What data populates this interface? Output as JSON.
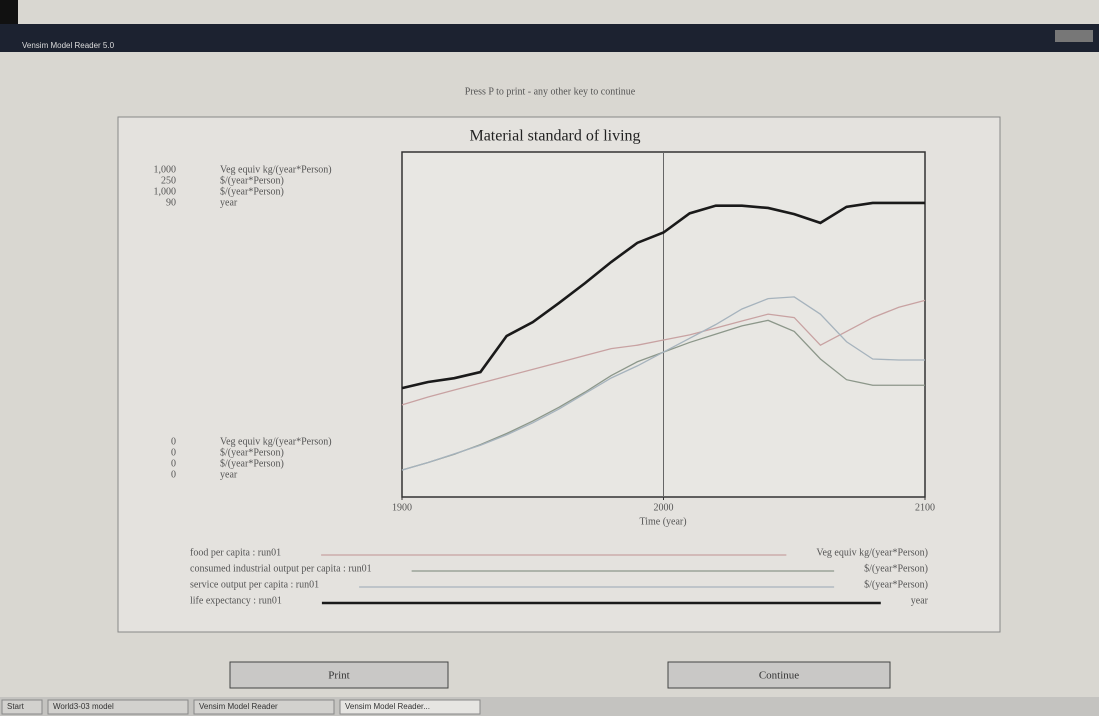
{
  "window": {
    "title": "Vensim Model Reader 5.0"
  },
  "prompt": "Press P to print - any other key to continue",
  "chart_data": {
    "type": "line",
    "title": "Material standard of living",
    "x_label": "Time (year)",
    "xlim": [
      1900,
      2100
    ],
    "xticks": [
      1900,
      2000,
      2100
    ],
    "time_marker": 2000,
    "x": [
      1900,
      1910,
      1920,
      1930,
      1940,
      1950,
      1960,
      1970,
      1980,
      1990,
      2000,
      2010,
      2020,
      2030,
      2040,
      2050,
      2060,
      2070,
      2080,
      2090,
      2100
    ],
    "series": [
      {
        "name": "food per capita : run01",
        "unit": "Veg equiv kg/(year*Person)",
        "color": "#c8a2a2",
        "width": 1.3,
        "ylim": [
          0,
          1000
        ],
        "yticks": [
          0,
          {
            "value": 1000,
            "label": "1,000"
          }
        ],
        "values": [
          267,
          290,
          310,
          330,
          350,
          370,
          390,
          410,
          430,
          440,
          455,
          470,
          490,
          510,
          530,
          520,
          440,
          480,
          520,
          550,
          570
        ]
      },
      {
        "name": "consumed industrial output per capita : run01",
        "unit": "$/(year*Person)",
        "color": "#8c978a",
        "width": 1.3,
        "ylim": [
          0,
          250
        ],
        "yticks": [
          0,
          250
        ],
        "values": [
          19.6,
          25,
          31,
          38,
          46,
          55,
          65,
          76,
          88,
          98,
          105,
          112,
          118,
          124,
          128,
          120,
          100,
          85,
          81,
          81,
          81
        ]
      },
      {
        "name": "service output per capita : run01",
        "unit": "$/(year*Person)",
        "color": "#a6b3bd",
        "width": 1.3,
        "ylim": [
          0,
          1000
        ],
        "yticks": [
          0,
          {
            "value": 1000,
            "label": "1,000"
          }
        ],
        "values": [
          78,
          100,
          125,
          150,
          180,
          215,
          255,
          300,
          345,
          380,
          420,
          460,
          500,
          545,
          575,
          580,
          530,
          450,
          400,
          397,
          397
        ]
      },
      {
        "name": "life expectancy : run01",
        "unit": "year",
        "color": "#1a1a1a",
        "width": 2.6,
        "ylim": [
          0,
          90
        ],
        "yticks": [
          0,
          90
        ],
        "values": [
          28.4,
          30,
          31,
          32.6,
          42,
          45.6,
          50.6,
          55.8,
          61.3,
          66.3,
          69,
          74,
          76,
          76,
          75.4,
          73.8,
          71.5,
          75.7,
          76.7,
          76.7,
          76.7
        ]
      }
    ]
  },
  "buttons": [
    "Print",
    "Continue"
  ],
  "taskbar": [
    "Start",
    "World3-03 model",
    "Vensim Model Reader",
    "Vensim Model Reader..."
  ]
}
